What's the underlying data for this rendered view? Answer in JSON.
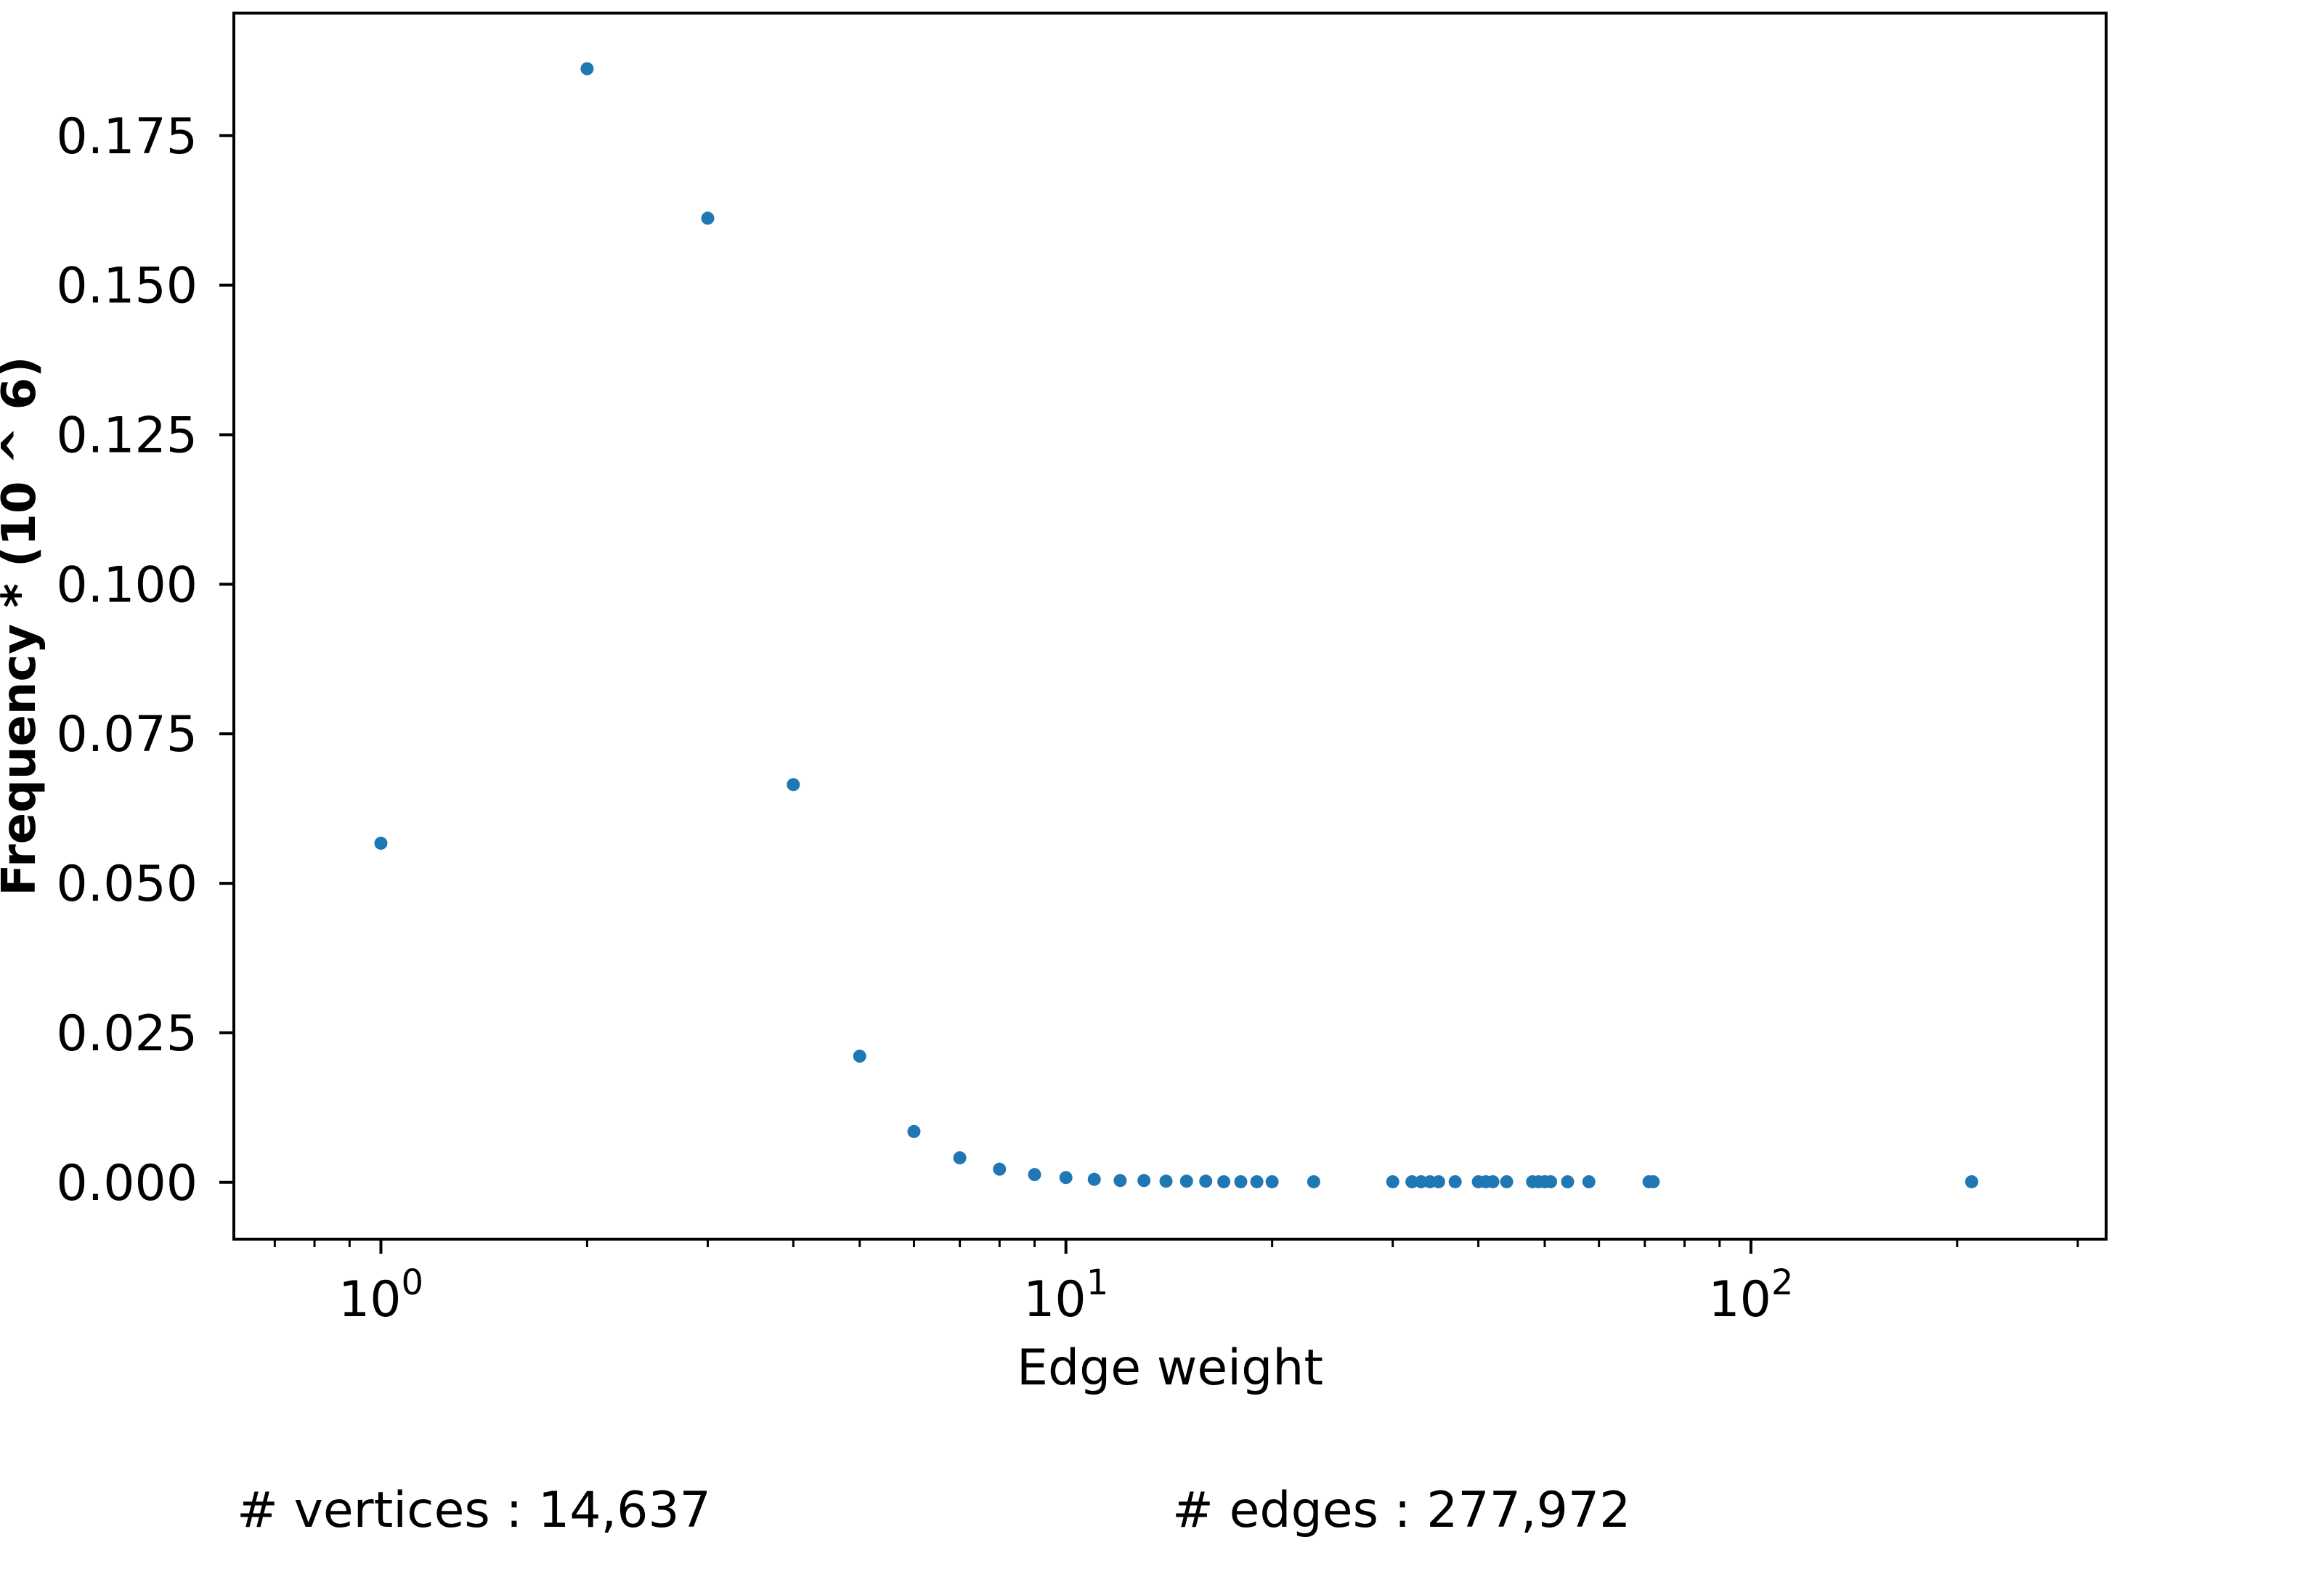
{
  "chart_data": {
    "type": "scatter",
    "title": "",
    "xlabel": "Edge weight",
    "ylabel": "Frequency * (10 ^ 6)",
    "xscale": "log",
    "xlim": [
      0.61,
      330
    ],
    "ylim": [
      -0.0095,
      0.1955
    ],
    "grid": false,
    "color": "#1f77b4",
    "x_ticks": [
      {
        "value": 1,
        "base": "10",
        "exp": "0"
      },
      {
        "value": 10,
        "base": "10",
        "exp": "1"
      },
      {
        "value": 100,
        "base": "10",
        "exp": "2"
      }
    ],
    "y_ticks": [
      {
        "value": 0.0,
        "label": "0.000"
      },
      {
        "value": 0.025,
        "label": "0.025"
      },
      {
        "value": 0.05,
        "label": "0.050"
      },
      {
        "value": 0.075,
        "label": "0.075"
      },
      {
        "value": 0.1,
        "label": "0.100"
      },
      {
        "value": 0.125,
        "label": "0.125"
      },
      {
        "value": 0.15,
        "label": "0.150"
      },
      {
        "value": 0.175,
        "label": "0.175"
      }
    ],
    "points": [
      {
        "x": 1,
        "y": 0.0567
      },
      {
        "x": 2,
        "y": 0.1862
      },
      {
        "x": 3,
        "y": 0.1612
      },
      {
        "x": 4,
        "y": 0.0665
      },
      {
        "x": 5,
        "y": 0.0211
      },
      {
        "x": 6,
        "y": 0.0085
      },
      {
        "x": 7,
        "y": 0.0041
      },
      {
        "x": 8,
        "y": 0.0022
      },
      {
        "x": 9,
        "y": 0.0013
      },
      {
        "x": 10,
        "y": 0.0008
      },
      {
        "x": 11,
        "y": 0.0005
      },
      {
        "x": 12,
        "y": 0.0003
      },
      {
        "x": 13,
        "y": 0.0003
      },
      {
        "x": 14,
        "y": 0.0002
      },
      {
        "x": 15,
        "y": 0.0002
      },
      {
        "x": 16,
        "y": 0.0002
      },
      {
        "x": 17,
        "y": 0.0001
      },
      {
        "x": 18,
        "y": 0.0001
      },
      {
        "x": 19,
        "y": 0.0001
      },
      {
        "x": 20,
        "y": 0.0001
      },
      {
        "x": 23,
        "y": 0.0001
      },
      {
        "x": 30,
        "y": 0.0001
      },
      {
        "x": 32,
        "y": 0.0001
      },
      {
        "x": 33,
        "y": 0.0001
      },
      {
        "x": 34,
        "y": 0.0001
      },
      {
        "x": 35,
        "y": 0.0001
      },
      {
        "x": 37,
        "y": 0.0001
      },
      {
        "x": 40,
        "y": 0.0001
      },
      {
        "x": 41,
        "y": 0.0001
      },
      {
        "x": 42,
        "y": 0.0001
      },
      {
        "x": 44,
        "y": 0.0001
      },
      {
        "x": 48,
        "y": 0.0001
      },
      {
        "x": 49,
        "y": 0.0001
      },
      {
        "x": 50,
        "y": 0.0001
      },
      {
        "x": 51,
        "y": 0.0001
      },
      {
        "x": 54,
        "y": 0.0001
      },
      {
        "x": 58,
        "y": 0.0001
      },
      {
        "x": 71,
        "y": 0.0001
      },
      {
        "x": 72,
        "y": 0.0001
      },
      {
        "x": 210,
        "y": 0.0001
      }
    ]
  },
  "footer": {
    "vertices": "# vertices : 14,637",
    "edges": "# edges : 277,972"
  }
}
